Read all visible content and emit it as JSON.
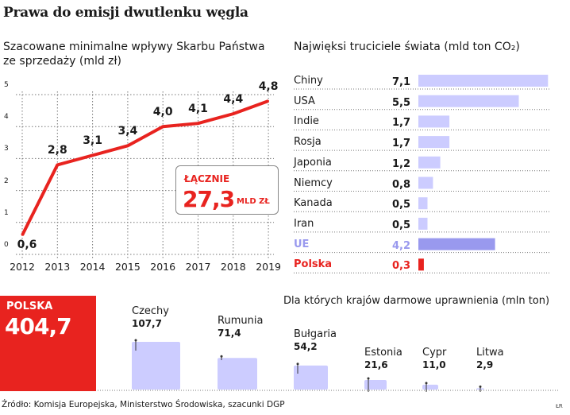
{
  "title": "Prawa do emisji dwutlenku węgla",
  "chart_data": [
    {
      "type": "line",
      "subtitle": "Szacowane minimalne wpływy Skarbu Państwa ze sprzedaży (mld zł)",
      "categories": [
        "2012",
        "2013",
        "2014",
        "2015",
        "2016",
        "2017",
        "2018",
        "2019"
      ],
      "values": [
        0.6,
        2.8,
        3.1,
        3.4,
        4.0,
        4.1,
        4.4,
        4.8
      ],
      "labels": [
        "0,6",
        "2,8",
        "3,1",
        "3,4",
        "4,0",
        "4,1",
        "4,4",
        "4,8"
      ],
      "yticks": [
        "0",
        "1",
        "2",
        "3",
        "4",
        "5"
      ],
      "ylim": [
        0,
        5
      ],
      "grid": true,
      "color": "#e8231f",
      "total": {
        "label": "ŁĄCZNIE",
        "value": "27,3",
        "unit": "MLD ZŁ"
      }
    },
    {
      "type": "bar",
      "orientation": "horizontal",
      "title": "Najwięksi truciciele świata (mld ton CO₂)",
      "categories": [
        "Chiny",
        "USA",
        "Indie",
        "Rosja",
        "Japonia",
        "Niemcy",
        "Kanada",
        "Iran",
        "UE",
        "Polska"
      ],
      "values": [
        7.1,
        5.5,
        1.7,
        1.7,
        1.2,
        0.8,
        0.5,
        0.5,
        4.2,
        0.3
      ],
      "labels": [
        "7,1",
        "5,5",
        "1,7",
        "1,7",
        "1,2",
        "0,8",
        "0,5",
        "0,5",
        "4,2",
        "0,3"
      ],
      "colors": {
        "default": "#ccccff",
        "UE": "#9999ee",
        "Polska": "#e8231f"
      }
    },
    {
      "type": "bar",
      "title": "Dla których krajów darmowe uprawnienia (mln ton)",
      "highlight": {
        "label": "POLSKA",
        "value": "404,7"
      },
      "categories": [
        "Czechy",
        "Rumunia",
        "Bułgaria",
        "Estonia",
        "Cypr",
        "Litwa"
      ],
      "values": [
        107.7,
        71.4,
        54.2,
        21.6,
        11.0,
        2.9
      ],
      "labels": [
        "107,7",
        "71,4",
        "54,2",
        "21,6",
        "11,0",
        "2,9"
      ],
      "color": "#ccccff"
    }
  ],
  "source": "Źródło: Komisja Europejska, Ministerstwo Środowiska, szacunki DGP",
  "signature": "ŁR"
}
